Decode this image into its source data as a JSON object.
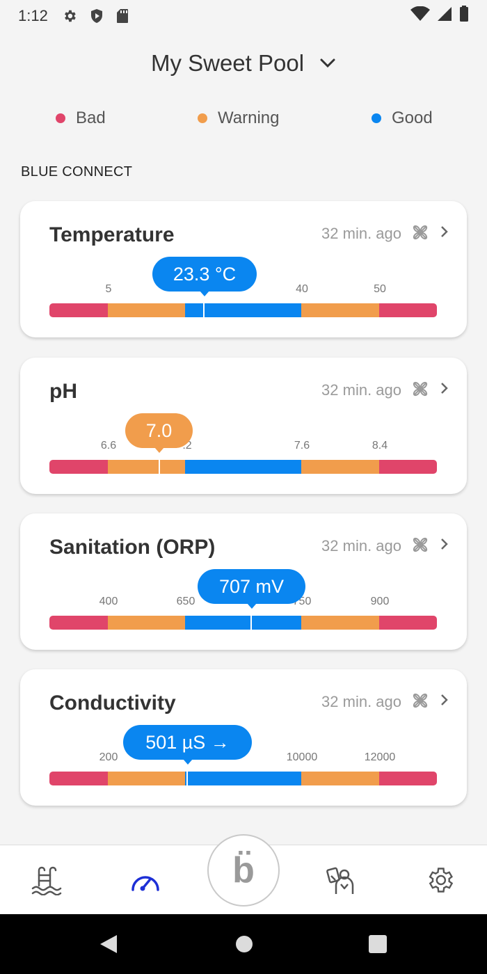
{
  "status_bar": {
    "time": "1:12",
    "left_icons": [
      "gear-icon",
      "shield-icon",
      "sd-card-icon"
    ],
    "right_icons": [
      "wifi-icon",
      "signal-icon",
      "battery-icon"
    ]
  },
  "header": {
    "pool_name": "My Sweet Pool"
  },
  "legend": [
    {
      "label": "Bad",
      "color": "#e0456a"
    },
    {
      "label": "Warning",
      "color": "#f19d4c"
    },
    {
      "label": "Good",
      "color": "#0a86f0"
    }
  ],
  "section_label": "BLUE CONNECT",
  "colors": {
    "bad": "#e0456a",
    "warning": "#f19d4c",
    "good": "#0a86f0"
  },
  "cards": [
    {
      "title": "Temperature",
      "time": "32 min. ago",
      "value": "23.3 °C",
      "status": "good",
      "ticks": [
        "5",
        "",
        "40",
        "50"
      ],
      "scale_fraction": 0.398
    },
    {
      "title": "pH",
      "time": "32 min. ago",
      "value": "7.0",
      "status": "warning",
      "ticks": [
        "6.6",
        ".2",
        "7.6",
        "8.4"
      ],
      "scale_fraction": 0.283
    },
    {
      "title": "Sanitation (ORP)",
      "time": "32 min. ago",
      "value": "707 mV",
      "status": "good",
      "ticks": [
        "400",
        "650",
        "750",
        "900"
      ],
      "scale_fraction": 0.522
    },
    {
      "title": "Conductivity",
      "time": "32 min. ago",
      "value": "501 µS  →",
      "status": "good",
      "ticks": [
        "200",
        "",
        "10000",
        "12000"
      ],
      "scale_fraction": 0.354
    }
  ],
  "bottom_nav": {
    "items": [
      "pool-icon",
      "gauge-icon",
      "blue-logo",
      "user-guide-icon",
      "settings-icon"
    ],
    "center_glyph": "b̈"
  }
}
